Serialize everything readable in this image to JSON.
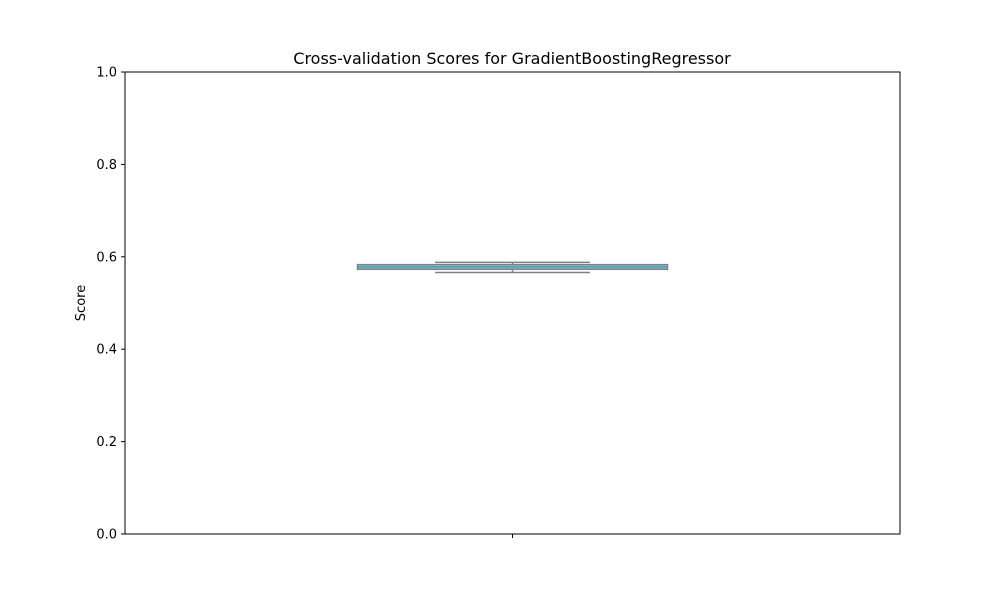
{
  "chart_data": {
    "type": "box",
    "title": "Cross-validation Scores for GradientBoostingRegressor",
    "xlabel": "",
    "ylabel": "Score",
    "ylim": [
      0,
      1
    ],
    "yticks": [
      0.0,
      0.2,
      0.4,
      0.6,
      0.8,
      1.0
    ],
    "ytick_labels": [
      "0.0",
      "0.2",
      "0.4",
      "0.6",
      "0.8",
      "1.0"
    ],
    "categories": [
      ""
    ],
    "boxes": [
      {
        "whisker_low": 0.566,
        "q1": 0.573,
        "median": 0.578,
        "q3": 0.583,
        "whisker_high": 0.588
      }
    ],
    "grid": false,
    "colors": {
      "box_fill": "#8ecae6",
      "box_edge": "#808080",
      "median": "#4a9aa8"
    }
  }
}
